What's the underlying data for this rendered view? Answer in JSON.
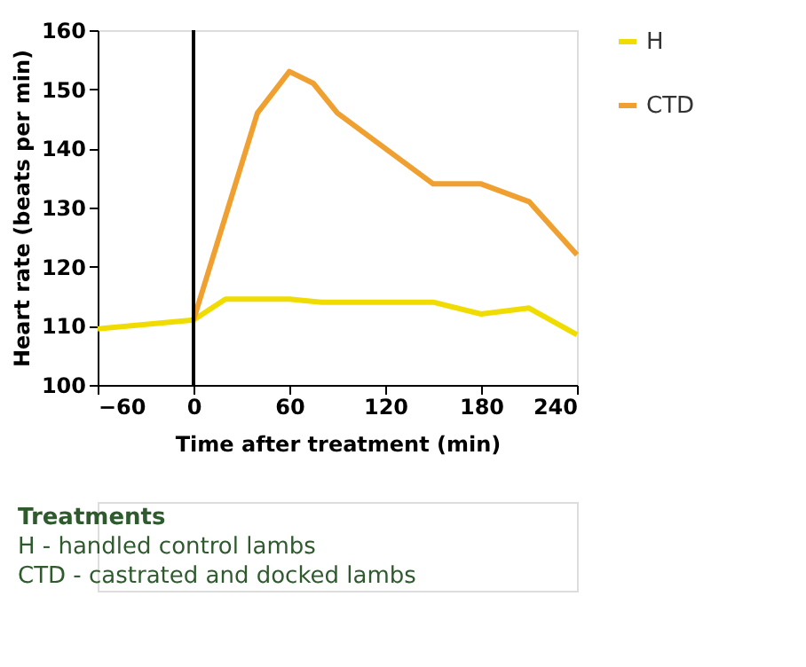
{
  "chart_data": {
    "type": "line",
    "xlabel": "Time after treatment (min)",
    "ylabel": "Heart rate (beats per min)",
    "series": [
      {
        "name": "H",
        "color": "#f0dc00",
        "x": [
          -60,
          0,
          20,
          60,
          80,
          150,
          180,
          210,
          240
        ],
        "values": [
          109.5,
          111,
          114.5,
          114.5,
          114,
          114,
          112,
          113,
          108.5
        ]
      },
      {
        "name": "CTD",
        "color": "#f0a030",
        "x": [
          0,
          40,
          60,
          75,
          90,
          120,
          150,
          180,
          210,
          240
        ],
        "values": [
          111,
          146,
          153,
          151,
          146,
          140,
          134,
          134,
          131,
          122
        ]
      }
    ],
    "xlim": [
      -60,
      240
    ],
    "xticks": [
      -60,
      0,
      60,
      120,
      180,
      240
    ],
    "ylim": [
      100,
      160
    ],
    "yticks": [
      100,
      110,
      120,
      130,
      140,
      150,
      160
    ],
    "ref_lines": [
      {
        "axis": "x",
        "value": 0,
        "color": "#000000"
      }
    ],
    "legend": "right",
    "grid": false,
    "marker": "none",
    "line_style": "solid",
    "annotations": [
      "Treatments",
      "H     - handled control lambs",
      "CTD - castrated and docked lambs"
    ]
  }
}
